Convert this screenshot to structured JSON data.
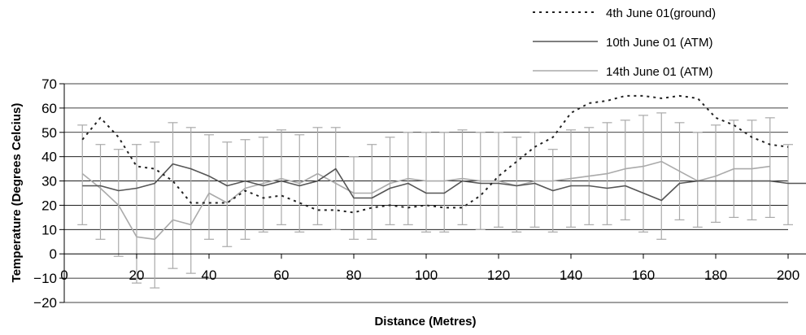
{
  "chart_data": {
    "type": "line",
    "xlabel": "Distance (Metres)",
    "ylabel": "Temperature (Degrees Celcius)",
    "xlim": [
      0,
      200
    ],
    "ylim": [
      -20,
      70
    ],
    "x_ticks": [
      0,
      20,
      40,
      60,
      80,
      100,
      120,
      140,
      160,
      180,
      200
    ],
    "y_ticks": [
      70,
      60,
      50,
      40,
      30,
      20,
      10,
      0,
      -10,
      -20
    ],
    "grid": "horizontal",
    "legend_position": "top-right",
    "series": [
      {
        "name": "4th June 01(ground)",
        "style": "dotted",
        "color": "#222222",
        "points": [
          [
            5,
            47
          ],
          [
            10,
            56
          ],
          [
            15,
            48
          ],
          [
            20,
            36
          ],
          [
            25,
            35
          ],
          [
            30,
            30
          ],
          [
            35,
            21
          ],
          [
            40,
            21
          ],
          [
            45,
            21
          ],
          [
            50,
            26
          ],
          [
            55,
            23
          ],
          [
            60,
            24
          ],
          [
            65,
            21
          ],
          [
            70,
            18
          ],
          [
            75,
            18
          ],
          [
            80,
            17
          ],
          [
            85,
            19
          ],
          [
            90,
            20
          ],
          [
            95,
            19
          ],
          [
            100,
            20
          ],
          [
            105,
            19
          ],
          [
            110,
            19
          ],
          [
            115,
            24
          ],
          [
            120,
            32
          ],
          [
            125,
            38
          ],
          [
            130,
            44
          ],
          [
            135,
            48
          ],
          [
            140,
            58
          ],
          [
            145,
            62
          ],
          [
            150,
            63
          ],
          [
            155,
            65
          ],
          [
            160,
            65
          ],
          [
            165,
            64
          ],
          [
            170,
            65
          ],
          [
            175,
            64
          ],
          [
            180,
            56
          ],
          [
            185,
            53
          ],
          [
            190,
            48
          ],
          [
            195,
            45
          ],
          [
            200,
            44
          ]
        ]
      },
      {
        "name": "10th June 01 (ATM)",
        "style": "solid",
        "color": "#555555",
        "points": [
          [
            5,
            28
          ],
          [
            10,
            28
          ],
          [
            15,
            26
          ],
          [
            20,
            27
          ],
          [
            25,
            29
          ],
          [
            30,
            37
          ],
          [
            35,
            35
          ],
          [
            40,
            32
          ],
          [
            45,
            28
          ],
          [
            50,
            30
          ],
          [
            55,
            28
          ],
          [
            60,
            30
          ],
          [
            65,
            28
          ],
          [
            70,
            30
          ],
          [
            75,
            35
          ],
          [
            80,
            23
          ],
          [
            85,
            23
          ],
          [
            90,
            27
          ],
          [
            95,
            29
          ],
          [
            100,
            25
          ],
          [
            105,
            25
          ],
          [
            110,
            30
          ],
          [
            115,
            29
          ],
          [
            120,
            29
          ],
          [
            125,
            28
          ],
          [
            130,
            29
          ],
          [
            135,
            26
          ],
          [
            140,
            28
          ],
          [
            145,
            28
          ],
          [
            150,
            27
          ],
          [
            155,
            28
          ],
          [
            160,
            25
          ],
          [
            165,
            22
          ],
          [
            170,
            29
          ],
          [
            175,
            30
          ],
          [
            180,
            30
          ],
          [
            185,
            30
          ],
          [
            190,
            30
          ],
          [
            195,
            30
          ],
          [
            200,
            29
          ],
          [
            205,
            29
          ]
        ]
      },
      {
        "name": "14th June 01 (ATM)",
        "style": "solid",
        "color": "#aaaaaa",
        "points": [
          [
            5,
            33
          ],
          [
            10,
            27
          ],
          [
            15,
            20
          ],
          [
            20,
            7
          ],
          [
            25,
            6
          ],
          [
            30,
            14
          ],
          [
            35,
            12
          ],
          [
            40,
            25
          ],
          [
            45,
            21
          ],
          [
            50,
            27
          ],
          [
            55,
            29
          ],
          [
            60,
            31
          ],
          [
            65,
            29
          ],
          [
            70,
            33
          ],
          [
            75,
            29
          ],
          [
            80,
            25
          ],
          [
            85,
            25
          ],
          [
            90,
            29
          ],
          [
            95,
            31
          ],
          [
            100,
            30
          ],
          [
            105,
            30
          ],
          [
            110,
            31
          ],
          [
            115,
            30
          ],
          [
            120,
            30
          ],
          [
            125,
            28
          ],
          [
            130,
            30
          ],
          [
            135,
            30
          ],
          [
            140,
            31
          ],
          [
            145,
            32
          ],
          [
            150,
            33
          ],
          [
            155,
            35
          ],
          [
            160,
            36
          ],
          [
            165,
            38
          ],
          [
            170,
            34
          ],
          [
            175,
            30
          ],
          [
            180,
            32
          ],
          [
            185,
            35
          ],
          [
            190,
            35
          ],
          [
            195,
            36
          ]
        ]
      }
    ],
    "error_bars": {
      "color": "#aaaaaa",
      "bars": [
        [
          5,
          12,
          53
        ],
        [
          10,
          6,
          45
        ],
        [
          15,
          -1,
          43
        ],
        [
          20,
          -12,
          45
        ],
        [
          25,
          -14,
          46
        ],
        [
          30,
          -6,
          54
        ],
        [
          35,
          -8,
          52
        ],
        [
          40,
          6,
          49
        ],
        [
          45,
          3,
          46
        ],
        [
          50,
          6,
          47
        ],
        [
          55,
          9,
          48
        ],
        [
          60,
          12,
          51
        ],
        [
          65,
          9,
          49
        ],
        [
          70,
          12,
          52
        ],
        [
          75,
          10,
          52
        ],
        [
          80,
          6,
          40
        ],
        [
          85,
          6,
          45
        ],
        [
          90,
          12,
          48
        ],
        [
          95,
          12,
          50
        ],
        [
          100,
          9,
          50
        ],
        [
          105,
          9,
          50
        ],
        [
          110,
          12,
          51
        ],
        [
          115,
          10,
          50
        ],
        [
          120,
          11,
          50
        ],
        [
          125,
          9,
          48
        ],
        [
          130,
          11,
          50
        ],
        [
          135,
          9,
          43
        ],
        [
          140,
          11,
          51
        ],
        [
          145,
          12,
          52
        ],
        [
          150,
          12,
          54
        ],
        [
          155,
          14,
          55
        ],
        [
          160,
          9,
          57
        ],
        [
          165,
          6,
          58
        ],
        [
          170,
          14,
          54
        ],
        [
          175,
          11,
          50
        ],
        [
          180,
          13,
          53
        ],
        [
          185,
          15,
          55
        ],
        [
          190,
          14,
          55
        ],
        [
          195,
          15,
          56
        ],
        [
          200,
          12,
          45
        ]
      ]
    }
  }
}
